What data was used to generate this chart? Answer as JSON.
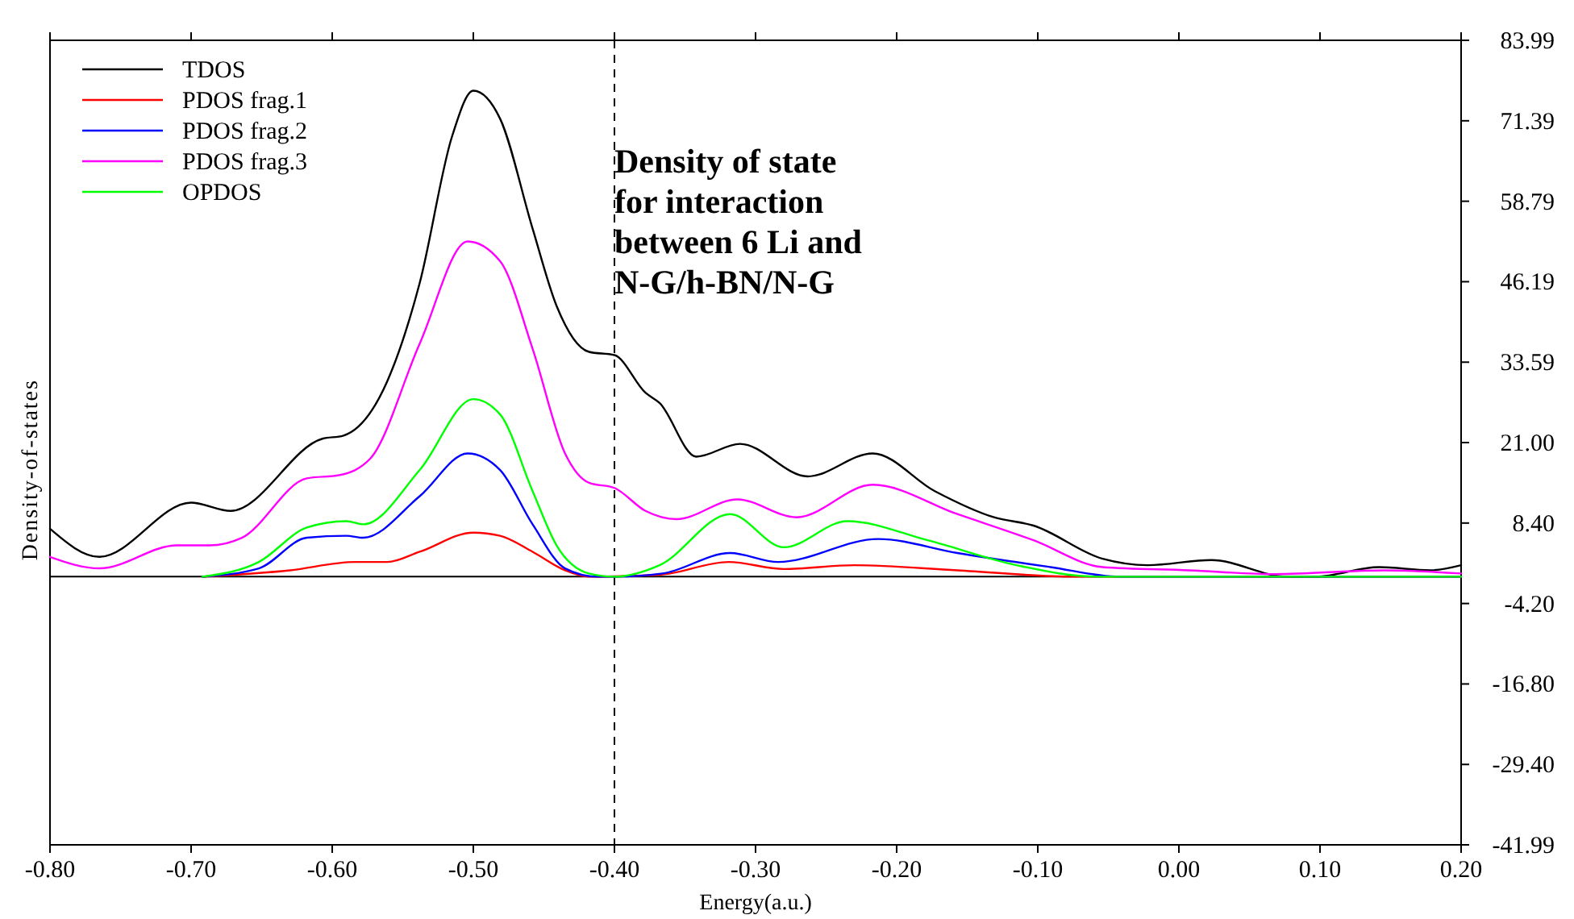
{
  "chart_data": {
    "type": "line",
    "xlabel": "Energy(a.u.)",
    "ylabel": "Density-of-states",
    "xlim": [
      -0.8,
      0.2
    ],
    "xticks": [
      {
        "value": -0.8,
        "label": "-0.80"
      },
      {
        "value": -0.7,
        "label": "-0.70"
      },
      {
        "value": -0.6,
        "label": "-0.60"
      },
      {
        "value": -0.5,
        "label": "-0.50"
      },
      {
        "value": -0.4,
        "label": "-0.40"
      },
      {
        "value": -0.3,
        "label": "-0.30"
      },
      {
        "value": -0.2,
        "label": "-0.20"
      },
      {
        "value": -0.1,
        "label": "-0.10"
      },
      {
        "value": 0,
        "label": "0.00"
      },
      {
        "value": 0.1,
        "label": "0.10"
      },
      {
        "value": 0.2,
        "label": "0.20"
      }
    ],
    "ylim": [
      -41.99,
      83.99
    ],
    "yticks": [
      83.99,
      71.39,
      58.79,
      46.19,
      33.59,
      {
        "value": 21,
        "label": "21.00"
      },
      {
        "value": 8.4,
        "label": "8.40"
      },
      {
        "value": -4.2,
        "label": "-4.20"
      },
      {
        "value": -16.8,
        "label": "-16.80"
      },
      {
        "value": -29.4,
        "label": "-29.40"
      },
      -41.99
    ],
    "grid": false,
    "legend": "top left",
    "line_style": "solid",
    "ref_lines": [
      {
        "axis": "x",
        "value": -0.4,
        "line_style": "dashed",
        "color": "#000000"
      },
      {
        "axis": "y",
        "value": 0,
        "line_style": "solid",
        "color": "#000000"
      }
    ],
    "annotations": [
      "Density of state\nfor interaction\nbetween 6 Li and\nN-G/h-BN/N-G"
    ],
    "series": [
      {
        "name": "TDOS",
        "color": "#000000",
        "x": [
          -0.8,
          -0.765,
          -0.7,
          -0.672,
          -0.607,
          -0.592,
          -0.561,
          -0.538,
          -0.515,
          -0.5,
          -0.481,
          -0.458,
          -0.441,
          -0.418,
          -0.4,
          -0.378,
          -0.368,
          -0.342,
          -0.311,
          -0.263,
          -0.217,
          -0.173,
          -0.131,
          -0.103,
          -0.054,
          -0.022,
          0.023,
          0.077,
          0.097,
          0.142,
          0.178,
          0.2
        ],
        "values": [
          7.5,
          3.1,
          11.6,
          10.3,
          21.6,
          22.1,
          30.6,
          46,
          69,
          76.1,
          71.7,
          54.5,
          42.4,
          35.2,
          34.7,
          28.8,
          27.2,
          18.8,
          20.8,
          15.7,
          19.3,
          13.4,
          9.3,
          8,
          2.8,
          1.8,
          2.6,
          0,
          0,
          1.5,
          1,
          1.8
        ]
      },
      {
        "name": "PDOS frag.1",
        "color": "#ff0000",
        "x": [
          -0.692,
          -0.63,
          -0.584,
          -0.561,
          -0.538,
          -0.5,
          -0.481,
          -0.458,
          -0.435,
          -0.418,
          -0.368,
          -0.319,
          -0.28,
          -0.23,
          -0.157,
          -0.074,
          0.2
        ],
        "values": [
          0,
          1,
          2.3,
          2.3,
          3.9,
          6.9,
          6.4,
          3.9,
          1,
          0,
          0.3,
          2.3,
          1.2,
          1.8,
          1,
          0,
          0
        ]
      },
      {
        "name": "PDOS frag.2",
        "color": "#0000ff",
        "x": [
          -0.692,
          -0.652,
          -0.618,
          -0.59,
          -0.578,
          -0.538,
          -0.504,
          -0.481,
          -0.458,
          -0.435,
          -0.412,
          -0.4,
          -0.366,
          -0.318,
          -0.284,
          -0.213,
          -0.157,
          -0.091,
          -0.042,
          0.2
        ],
        "values": [
          0,
          1.3,
          6.1,
          6.4,
          6.1,
          12.6,
          19.3,
          16.7,
          8.2,
          1.3,
          0,
          0,
          0.5,
          3.7,
          2.3,
          5.9,
          3.7,
          1.5,
          0,
          0
        ]
      },
      {
        "name": "PDOS frag.3",
        "color": "#ff00ff",
        "x": [
          -0.8,
          -0.765,
          -0.71,
          -0.687,
          -0.664,
          -0.618,
          -0.595,
          -0.573,
          -0.538,
          -0.504,
          -0.481,
          -0.458,
          -0.435,
          -0.418,
          -0.4,
          -0.378,
          -0.356,
          -0.313,
          -0.271,
          -0.217,
          -0.157,
          -0.103,
          -0.054,
          0.007,
          0.068,
          0.146,
          0.2
        ],
        "values": [
          3.1,
          1.3,
          4.9,
          4.9,
          6.1,
          15.4,
          15.9,
          18.5,
          36.5,
          52.5,
          49.4,
          35.7,
          19.3,
          14.7,
          13.9,
          10.3,
          9,
          12.1,
          9.3,
          14.4,
          9.8,
          5.7,
          1.5,
          1,
          0.4,
          1,
          0.5
        ]
      },
      {
        "name": "OPDOS",
        "color": "#00ff00",
        "x": [
          -0.692,
          -0.652,
          -0.618,
          -0.59,
          -0.578,
          -0.538,
          -0.5,
          -0.481,
          -0.458,
          -0.441,
          -0.418,
          -0.4,
          -0.368,
          -0.318,
          -0.28,
          -0.235,
          -0.178,
          -0.115,
          -0.058,
          0.2
        ],
        "values": [
          0,
          2.3,
          7.7,
          8.7,
          8.2,
          16.7,
          27.8,
          25.4,
          13.4,
          4.9,
          0.5,
          0,
          1.8,
          9.8,
          4.6,
          8.7,
          5.7,
          1.8,
          0,
          0
        ]
      }
    ]
  }
}
